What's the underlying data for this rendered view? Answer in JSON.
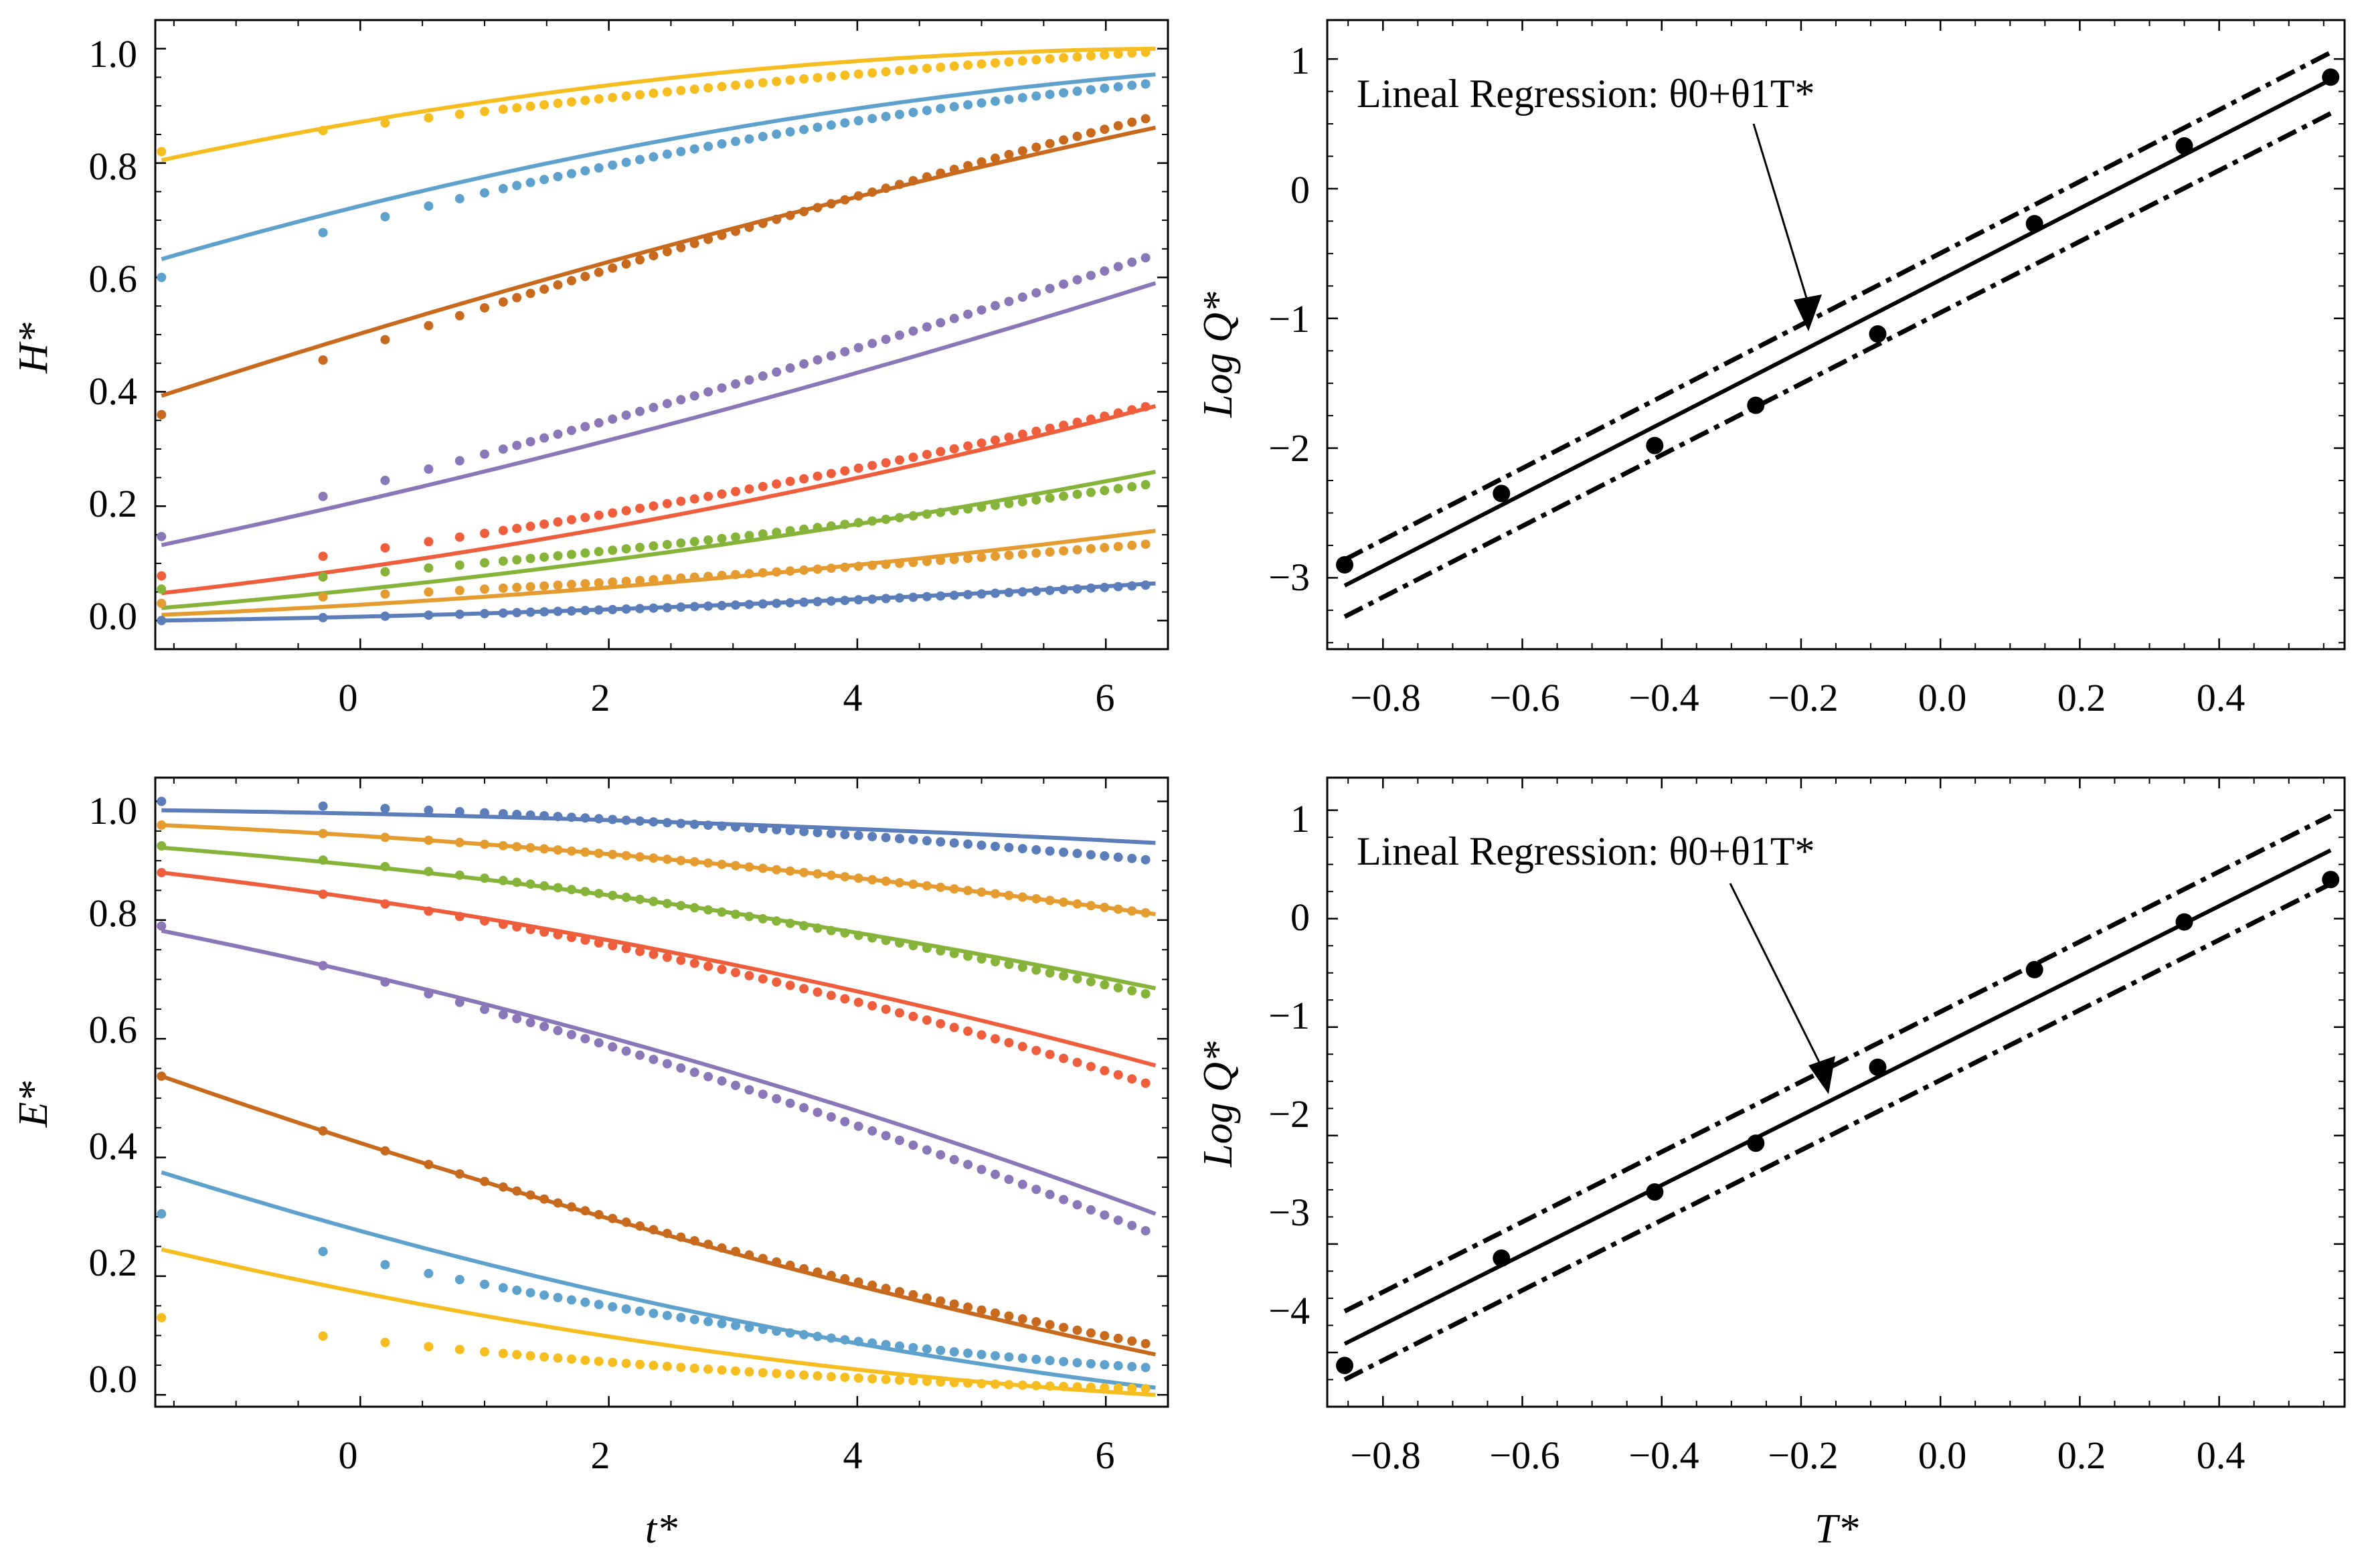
{
  "colors": {
    "gold": "#F5BD1F",
    "skyblue": "#5EA1CC",
    "brown": "#C86A1E",
    "purple": "#8A77B8",
    "red": "#EE5E3C",
    "green": "#86B33A",
    "orange": "#E49B2F",
    "blue": "#5B7DB9",
    "black": "#000000"
  },
  "chart_data": [
    {
      "id": "H",
      "type": "scatter",
      "xlabel": "t*",
      "ylabel": "H*",
      "xlim": [
        -1.65,
        6.5
      ],
      "ylim": [
        -0.05,
        1.05
      ],
      "xticks": [
        "0",
        "2",
        "4",
        "6"
      ],
      "yticks": [
        "0.0",
        "0.2",
        "0.4",
        "0.6",
        "0.8",
        "1.0"
      ],
      "legend": "none",
      "series": [
        {
          "color": "gold",
          "fit_start": 0.805,
          "fit_end": 1.0,
          "fit_curv": 0.9,
          "pts_start": 0.82,
          "pts_end": 0.995,
          "pts_curv": 0.35
        },
        {
          "color": "skyblue",
          "fit_start": 0.632,
          "fit_end": 0.955,
          "fit_curv": 0.55,
          "pts_start": 0.6,
          "pts_end": 0.94,
          "pts_curv": 0.5
        },
        {
          "color": "brown",
          "fit_start": 0.393,
          "fit_end": 0.862,
          "fit_curv": 0.2,
          "pts_start": 0.36,
          "pts_end": 0.882,
          "pts_curv": 0.15
        },
        {
          "color": "purple",
          "fit_start": 0.132,
          "fit_end": 0.59,
          "fit_curv": -0.2,
          "pts_start": 0.147,
          "pts_end": 0.64,
          "pts_curv": -0.15
        },
        {
          "color": "red",
          "fit_start": 0.048,
          "fit_end": 0.375,
          "fit_curv": -0.4,
          "pts_start": 0.078,
          "pts_end": 0.378,
          "pts_curv": -0.35
        },
        {
          "color": "green",
          "fit_start": 0.022,
          "fit_end": 0.26,
          "fit_curv": -0.4,
          "pts_start": 0.055,
          "pts_end": 0.24,
          "pts_curv": -0.35
        },
        {
          "color": "orange",
          "fit_start": 0.01,
          "fit_end": 0.157,
          "fit_curv": -0.5,
          "pts_start": 0.03,
          "pts_end": 0.135,
          "pts_curv": -0.4
        },
        {
          "color": "blue",
          "fit_start": 0.0,
          "fit_end": 0.065,
          "fit_curv": -0.6,
          "pts_start": 0.0,
          "pts_end": 0.063,
          "pts_curv": -0.6
        }
      ]
    },
    {
      "id": "Q1",
      "type": "scatter",
      "xlabel": "",
      "ylabel": "Log Q*",
      "xlim": [
        -0.88,
        0.58
      ],
      "ylim": [
        -3.55,
        1.3
      ],
      "xticks": [
        "−0.8",
        "−0.6",
        "−0.4",
        "−0.2",
        "0.0",
        "0.2",
        "0.4"
      ],
      "yticks": [
        "1",
        "0",
        "−1",
        "−2",
        "−3"
      ],
      "annotation": "Lineal Regression: θ0+θ1T*",
      "fit": {
        "x": [
          -0.855,
          0.56
        ],
        "y": [
          -3.06,
          0.84
        ]
      },
      "upper": {
        "x": [
          -0.855,
          0.56
        ],
        "y": [
          -2.86,
          1.05
        ]
      },
      "lower": {
        "x": [
          -0.855,
          0.56
        ],
        "y": [
          -3.3,
          0.58
        ]
      },
      "points": {
        "x": [
          -0.855,
          -0.63,
          -0.41,
          -0.265,
          -0.09,
          0.135,
          0.35,
          0.56
        ],
        "y": [
          -2.9,
          -2.35,
          -1.98,
          -1.67,
          -1.12,
          -0.27,
          0.33,
          0.86
        ]
      }
    },
    {
      "id": "E",
      "type": "scatter",
      "xlabel": "t*",
      "ylabel": "E*",
      "xlim": [
        -1.65,
        6.5
      ],
      "ylim": [
        -0.02,
        1.04
      ],
      "xticks": [
        "0",
        "2",
        "4",
        "6"
      ],
      "yticks": [
        "0.0",
        "0.2",
        "0.4",
        "0.6",
        "0.8",
        "1.0"
      ],
      "legend": "none",
      "series": [
        {
          "color": "blue",
          "fit_start": 0.985,
          "fit_end": 0.93,
          "fit_curv": -0.6,
          "pts_start": 1.0,
          "pts_end": 0.9,
          "pts_curv": -0.6
        },
        {
          "color": "orange",
          "fit_start": 0.96,
          "fit_end": 0.81,
          "fit_curv": -0.5,
          "pts_start": 0.96,
          "pts_end": 0.81,
          "pts_curv": -0.5
        },
        {
          "color": "green",
          "fit_start": 0.922,
          "fit_end": 0.685,
          "fit_curv": -0.45,
          "pts_start": 0.925,
          "pts_end": 0.672,
          "pts_curv": -0.5
        },
        {
          "color": "red",
          "fit_start": 0.88,
          "fit_end": 0.555,
          "fit_curv": -0.4,
          "pts_start": 0.88,
          "pts_end": 0.52,
          "pts_curv": -0.45
        },
        {
          "color": "purple",
          "fit_start": 0.782,
          "fit_end": 0.305,
          "fit_curv": -0.3,
          "pts_start": 0.79,
          "pts_end": 0.27,
          "pts_curv": -0.25
        },
        {
          "color": "brown",
          "fit_start": 0.537,
          "fit_end": 0.068,
          "fit_curv": 0.25,
          "pts_start": 0.537,
          "pts_end": 0.083,
          "pts_curv": 0.3
        },
        {
          "color": "skyblue",
          "fit_start": 0.375,
          "fit_end": 0.012,
          "fit_curv": 0.45,
          "pts_start": 0.305,
          "pts_end": 0.045,
          "pts_curv": 0.6
        },
        {
          "color": "gold",
          "fit_start": 0.245,
          "fit_end": 0.0,
          "fit_curv": 0.6,
          "pts_start": 0.13,
          "pts_end": 0.01,
          "pts_curv": 0.7
        }
      ]
    },
    {
      "id": "Q2",
      "type": "scatter",
      "xlabel": "T*",
      "ylabel": "Log Q*",
      "xlim": [
        -0.88,
        0.58
      ],
      "ylim": [
        -4.5,
        1.3
      ],
      "xticks": [
        "−0.8",
        "−0.6",
        "−0.4",
        "−0.2",
        "0.0",
        "0.2",
        "0.4"
      ],
      "yticks": [
        "1",
        "0",
        "−1",
        "−2",
        "−3",
        "−4"
      ],
      "annotation": "Lineal Regression: θ0+θ1T*",
      "fit": {
        "x": [
          -0.855,
          0.56
        ],
        "y": [
          -3.92,
          0.63
        ]
      },
      "upper": {
        "x": [
          -0.855,
          0.56
        ],
        "y": [
          -3.62,
          0.95
        ]
      },
      "lower": {
        "x": [
          -0.855,
          0.56
        ],
        "y": [
          -4.25,
          0.32
        ]
      },
      "points": {
        "x": [
          -0.855,
          -0.63,
          -0.41,
          -0.265,
          -0.09,
          0.135,
          0.35,
          0.56
        ],
        "y": [
          -4.12,
          -3.13,
          -2.52,
          -2.07,
          -1.37,
          -0.47,
          -0.03,
          0.36
        ]
      }
    }
  ]
}
